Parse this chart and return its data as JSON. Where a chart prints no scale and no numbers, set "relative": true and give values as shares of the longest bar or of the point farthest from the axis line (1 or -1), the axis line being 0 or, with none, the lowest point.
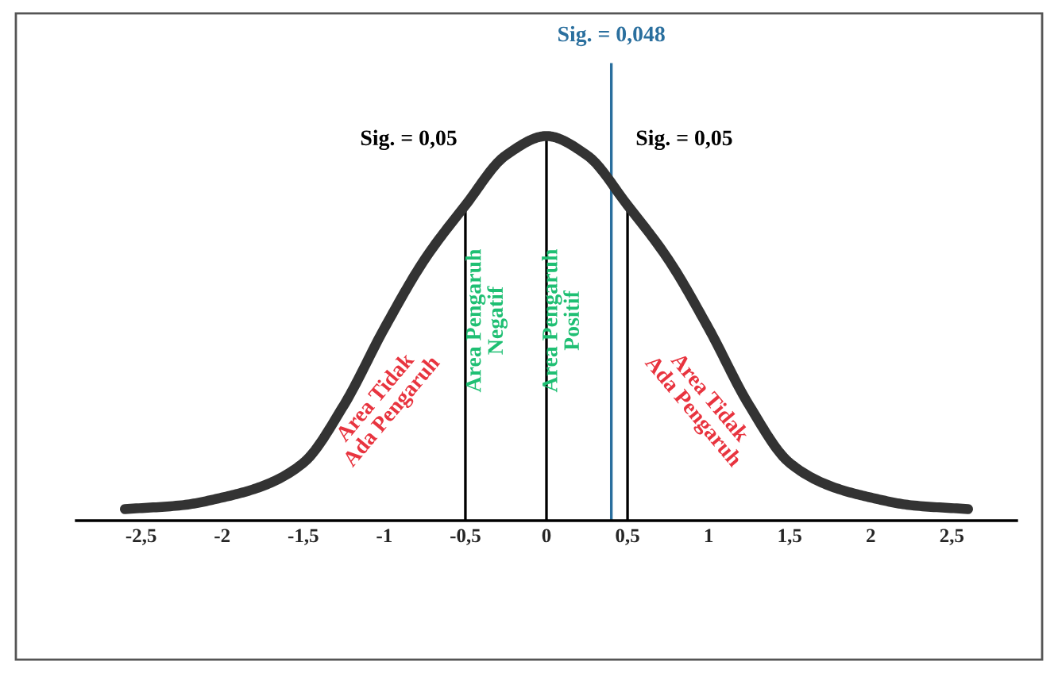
{
  "chart_data": {
    "type": "line",
    "relative": true,
    "x": [
      -2.6,
      -2.25,
      -2,
      -1.75,
      -1.5,
      -1.25,
      -1,
      -0.75,
      -0.5,
      -0.25,
      0,
      0.25,
      0.5,
      0.75,
      1,
      1.25,
      1.5,
      1.75,
      2,
      2.25,
      2.6
    ],
    "series": [
      {
        "color": "#333333",
        "values": [
          0.03,
          0.04,
          0.06,
          0.09,
          0.15,
          0.3,
          0.5,
          0.68,
          0.82,
          0.95,
          1,
          0.95,
          0.82,
          0.68,
          0.5,
          0.3,
          0.15,
          0.09,
          0.06,
          0.04,
          0.03
        ]
      }
    ],
    "xlim": [
      -2.9,
      2.9
    ],
    "xticks": [
      {
        "value": -2.5,
        "label": "-2,5"
      },
      -2,
      {
        "value": -1.5,
        "label": "-1,5"
      },
      -1,
      {
        "value": -0.5,
        "label": "-0,5"
      },
      0,
      {
        "value": 0.5,
        "label": "0,5"
      },
      1,
      {
        "value": 1.5,
        "label": "1,5"
      },
      2,
      {
        "value": 2.5,
        "label": "2,5"
      }
    ],
    "tick_labels": "x",
    "grid": false,
    "ref_lines": [
      {
        "axis": "x",
        "value": -0.5,
        "color": "#000000"
      },
      {
        "axis": "x",
        "value": 0,
        "color": "#000000"
      },
      {
        "axis": "x",
        "value": 0.5,
        "color": "#000000"
      },
      {
        "axis": "x",
        "value": 0.4,
        "color": "#2a6f9e"
      }
    ],
    "annotations": [
      "Sig. = 0,05",
      "Sig. = 0,05",
      "Sig. = 0,048",
      "Area Tidak\nAda Pengaruh",
      "Area Pengaruh\nNegatif",
      "Area Pengaruh\nPositif",
      "Area Tidak\nAda Pengaruh"
    ]
  }
}
